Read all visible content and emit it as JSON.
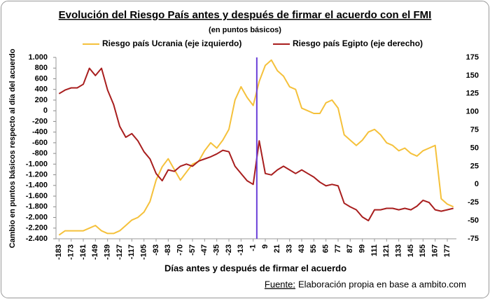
{
  "chart_data": {
    "type": "line",
    "title": "Evolución del Riesgo País antes y después de firmar el acuerdo con el FMI",
    "subtitle": "(en puntos básicos)",
    "x_label": "Días antes y después de firmar el acuerdo",
    "y_label": "Cambio en puntos básicos respecto al día del acuerdo",
    "source_label": "Fuente:",
    "source": "Elaboración propia en base a ambito.com",
    "categories": [
      "-183",
      null,
      "-173",
      null,
      "-161",
      null,
      "-149",
      null,
      "-139",
      null,
      "-127",
      null,
      "-117",
      null,
      "-105",
      null,
      "-93",
      null,
      "-83",
      null,
      "-70",
      null,
      "-57",
      null,
      "-47",
      null,
      "-35",
      null,
      "-23",
      null,
      "-13",
      null,
      "-1",
      null,
      "9",
      null,
      "21",
      null,
      "33",
      null,
      "43",
      null,
      "55",
      null,
      "65",
      null,
      "77",
      null,
      "87",
      null,
      "99",
      null,
      "111",
      null,
      "121",
      null,
      "133",
      null,
      "145",
      null,
      "155",
      null,
      "167",
      null,
      "177",
      null
    ],
    "series": [
      {
        "name": "Riesgo país Ucrania (eje izquierdo)",
        "color": "#f5c13b",
        "axis": "y",
        "values": [
          -2330,
          -2250,
          -2250,
          -2250,
          -2250,
          -2200,
          -2150,
          -2250,
          -2300,
          -2300,
          -2250,
          -2150,
          -2050,
          -2000,
          -1900,
          -1700,
          -1300,
          -1050,
          -900,
          -1100,
          -1300,
          -1150,
          -1000,
          -950,
          -750,
          -600,
          -700,
          -550,
          -350,
          200,
          450,
          250,
          100,
          550,
          850,
          950,
          750,
          650,
          450,
          400,
          50,
          0,
          -50,
          -50,
          150,
          200,
          50,
          -450,
          -550,
          -650,
          -550,
          -400,
          -350,
          -450,
          -600,
          -650,
          -750,
          -700,
          -800,
          -850,
          -750,
          -700,
          -650,
          -1650,
          -1750,
          -1800
        ]
      },
      {
        "name": "Riesgo país Egipto (eje derecho)",
        "color": "#a81e1e",
        "axis": "y2",
        "values": [
          125,
          130,
          133,
          133,
          138,
          160,
          150,
          160,
          130,
          110,
          80,
          65,
          70,
          60,
          45,
          35,
          15,
          5,
          20,
          18,
          25,
          28,
          25,
          32,
          35,
          38,
          42,
          47,
          45,
          25,
          15,
          5,
          0,
          60,
          15,
          13,
          20,
          25,
          20,
          15,
          20,
          15,
          10,
          3,
          -2,
          0,
          -2,
          -26,
          -31,
          -35,
          -45,
          -50,
          -35,
          -35,
          -33,
          -33,
          -35,
          -33,
          -35,
          -30,
          -22,
          -25,
          -35,
          -37,
          -35,
          -33
        ]
      }
    ],
    "ylim": [
      -2400,
      1000
    ],
    "yticks": [
      {
        "value": 1000,
        "label": "1.000"
      },
      800,
      600,
      400,
      200,
      0,
      -200,
      -400,
      -600,
      -800,
      {
        "value": -1000,
        "label": "-1.000"
      },
      {
        "value": -1200,
        "label": "-1.200"
      },
      {
        "value": -1400,
        "label": "-1.400"
      },
      {
        "value": -1600,
        "label": "-1.600"
      },
      {
        "value": -1800,
        "label": "-1.800"
      },
      {
        "value": -2000,
        "label": "-2.000"
      },
      {
        "value": -2200,
        "label": "-2.200"
      },
      {
        "value": -2400,
        "label": "-2.400"
      }
    ],
    "y2lim": [
      -75,
      175
    ],
    "y2ticks": [
      175,
      150,
      125,
      100,
      75,
      50,
      25,
      0,
      -25,
      -50,
      -75
    ],
    "legend": "top",
    "grid": false
  }
}
